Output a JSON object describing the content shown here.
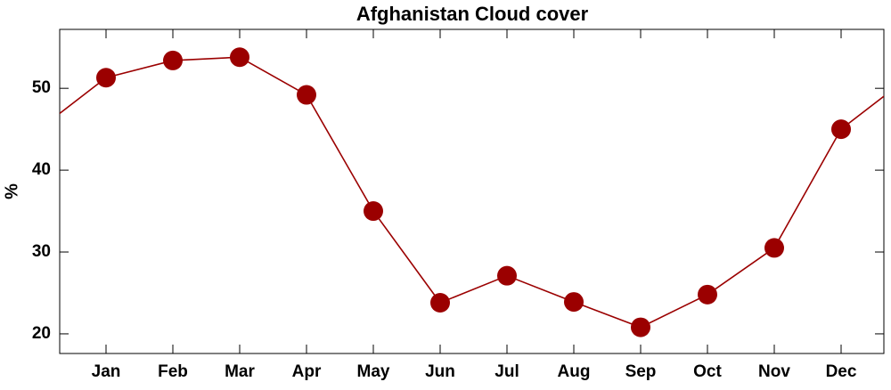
{
  "chart_data": {
    "type": "line",
    "title": "Afghanistan Cloud cover",
    "y_label": "%",
    "categories": [
      "Jan",
      "Feb",
      "Mar",
      "Apr",
      "May",
      "Jun",
      "Jul",
      "Aug",
      "Sep",
      "Oct",
      "Nov",
      "Dec"
    ],
    "series": [
      {
        "name": "Cloud cover",
        "color": "#9b0000",
        "values": [
          51.3,
          53.4,
          53.8,
          49.2,
          35.0,
          23.8,
          27.1,
          23.9,
          20.8,
          24.8,
          30.5,
          45.0
        ]
      }
    ],
    "ylim": [
      17.6,
      57.2
    ],
    "yticks": [
      20,
      30,
      40,
      50
    ],
    "grid": false
  }
}
